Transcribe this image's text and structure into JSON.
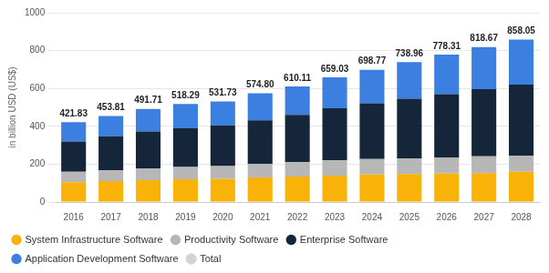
{
  "chart_data": {
    "type": "bar",
    "stacked": true,
    "grid": true,
    "legend": "bottom left",
    "y_label": "in billion USD (US$)",
    "categories": [
      "2016",
      "2017",
      "2018",
      "2019",
      "2020",
      "2021",
      "2022",
      "2023",
      "2024",
      "2025",
      "2026",
      "2027",
      "2028"
    ],
    "ylim": [
      0,
      1000
    ],
    "yticks": [
      0,
      200,
      400,
      600,
      800,
      1000
    ],
    "series": [
      {
        "name": "Total",
        "type": "line",
        "line_style": "none",
        "marker": "none",
        "color": "#d4d4d4",
        "data_labels": true,
        "values": [
          421.83,
          453.81,
          491.71,
          518.29,
          531.73,
          574.8,
          610.11,
          659.03,
          698.77,
          738.96,
          778.31,
          818.67,
          858.05
        ],
        "value_labels": [
          "421.83",
          "453.81",
          "491.71",
          "518.29",
          "531.73",
          "574.80",
          "610.11",
          "659.03",
          "698.77",
          "738.96",
          "778.31",
          "818.67",
          "858.05"
        ]
      },
      {
        "name": "Application Development Software",
        "color": "#3b7fe0",
        "values": [
          101.83,
          106.81,
          118.71,
          128.29,
          126.73,
          142.8,
          150.11,
          164.03,
          176.77,
          192.96,
          208.31,
          222.67,
          238.05
        ]
      },
      {
        "name": "Enterprise Software",
        "color": "#15253a",
        "values": [
          160,
          180,
          195,
          205,
          215,
          230,
          250,
          275,
          295,
          315,
          335,
          355,
          375
        ]
      },
      {
        "name": "Productivity Software",
        "color": "#b7b7b7",
        "values": [
          55,
          57,
          63,
          65,
          68,
          72,
          75,
          80,
          82,
          83,
          85,
          88,
          85
        ]
      },
      {
        "name": "System Infrastructure Software",
        "color": "#f9b208",
        "values": [
          105,
          110,
          115,
          120,
          122,
          130,
          135,
          140,
          145,
          148,
          150,
          153,
          160
        ]
      }
    ]
  }
}
